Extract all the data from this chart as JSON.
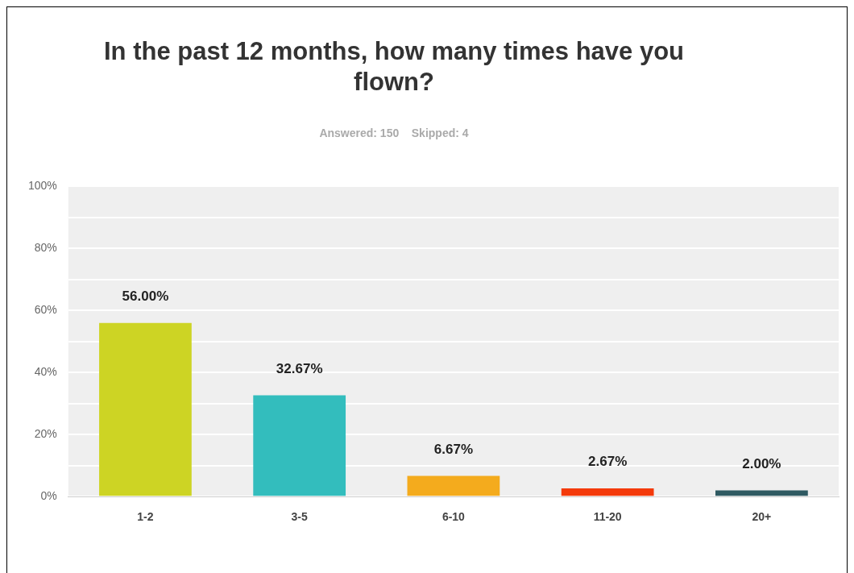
{
  "chart_data": {
    "type": "bar",
    "title": "In the past 12 months, how many times have you flown?",
    "subtitle": "Answered: 150    Skipped: 4",
    "categories": [
      "1-2",
      "3-5",
      "6-10",
      "11-20",
      "20+"
    ],
    "values": [
      56.0,
      32.67,
      6.67,
      2.67,
      2.0
    ],
    "colors": [
      "#cdd424",
      "#33bdbd",
      "#f4ab1d",
      "#f43a0b",
      "#2f5a62"
    ],
    "value_labels": [
      "56.00%",
      "32.67%",
      "6.67%",
      "2.67%",
      "2.00%"
    ],
    "ylim": [
      0,
      100
    ],
    "yticks": [
      {
        "value": 0,
        "label": "0%"
      },
      {
        "value": 10,
        "label": null
      },
      {
        "value": 20,
        "label": "20%"
      },
      {
        "value": 30,
        "label": null
      },
      {
        "value": 40,
        "label": "40%"
      },
      {
        "value": 50,
        "label": null
      },
      {
        "value": 60,
        "label": "60%"
      },
      {
        "value": 70,
        "label": null
      },
      {
        "value": 80,
        "label": "80%"
      },
      {
        "value": 90,
        "label": null
      },
      {
        "value": 100,
        "label": "100%"
      }
    ],
    "grid": "y",
    "legend": false
  }
}
